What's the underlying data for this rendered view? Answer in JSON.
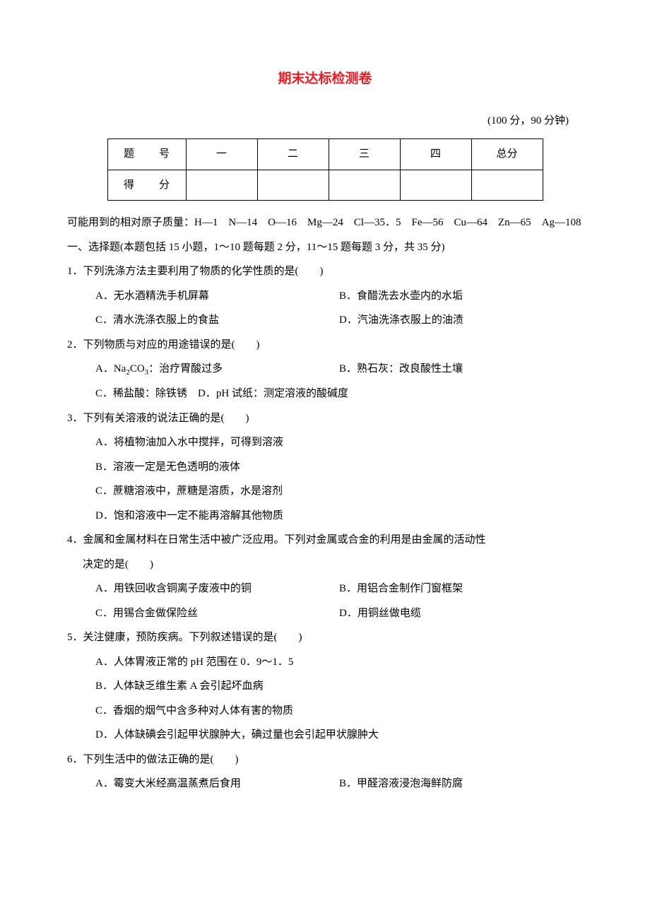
{
  "title": "期末达标检测卷",
  "meta": "(100 分，90 分钟)",
  "scoreTable": {
    "row1": [
      "题　号",
      "一",
      "二",
      "三",
      "四",
      "总分"
    ],
    "row2": [
      "得　分",
      "",
      "",
      "",
      "",
      ""
    ]
  },
  "atomicMasses": "可能用到的相对原子质量：H—1　N—14　O—16　Mg—24　Cl—35．5　Fe—56　Cu—64　Zn—65　Ag—108",
  "section1Heading": "一、选择题(本题包括 15 小题，1～10 题每题 2 分，11～15 题每题 3 分，共 35 分)",
  "q1": {
    "stem": "1．下列洗涤方法主要利用了物质的化学性质的是(　　)",
    "A": "A．无水酒精洗手机屏幕",
    "B": "B．食醋洗去水壶内的水垢",
    "C": "C．清水洗涤衣服上的食盐",
    "D": "D．汽油洗涤衣服上的油渍"
  },
  "q2": {
    "stem": "2．下列物质与对应的用途错误的是(　　)",
    "A_pre": "A．Na",
    "A_sub": "2",
    "A_mid": "CO",
    "A_sub2": "3",
    "A_post": "：治疗胃酸过多",
    "B": "B．熟石灰：改良酸性土壤",
    "C": "C．稀盐酸：除铁锈",
    "D": "D．pH 试纸：测定溶液的酸碱度"
  },
  "q3": {
    "stem": "3．下列有关溶液的说法正确的是(　　)",
    "A": "A．将植物油加入水中搅拌，可得到溶液",
    "B": "B．溶液一定是无色透明的液体",
    "C": "C．蔗糖溶液中，蔗糖是溶质，水是溶剂",
    "D": "D．饱和溶液中一定不能再溶解其他物质"
  },
  "q4": {
    "stem": "4．金属和金属材料在日常生活中被广泛应用。下列对金属或合金的利用是由金属的活动性",
    "stem2": "决定的是(　　)",
    "A": "A．用铁回收含铜离子废液中的铜",
    "B": "B．用铝合金制作门窗框架",
    "C": "C．用锡合金做保险丝",
    "D": "D．用铜丝做电缆"
  },
  "q5": {
    "stem": "5．关注健康，预防疾病。下列叙述错误的是(　　)",
    "A": "A．人体胃液正常的 pH 范围在 0．9～1．5",
    "B": "B．人体缺乏维生素 A 会引起坏血病",
    "C": "C．香烟的烟气中含多种对人体有害的物质",
    "D": "D．人体缺碘会引起甲状腺肿大，碘过量也会引起甲状腺肿大"
  },
  "q6": {
    "stem": "6．下列生活中的做法正确的是(　　)",
    "A": "A．霉变大米经高温蒸煮后食用",
    "B": "B．甲醛溶液浸泡海鲜防腐"
  },
  "style": {
    "title_color": "#ed1c24",
    "title_fontsize": 19,
    "body_fontsize": 15,
    "line_height": 2.3,
    "background": "#ffffff",
    "font_family": "SimSun"
  }
}
